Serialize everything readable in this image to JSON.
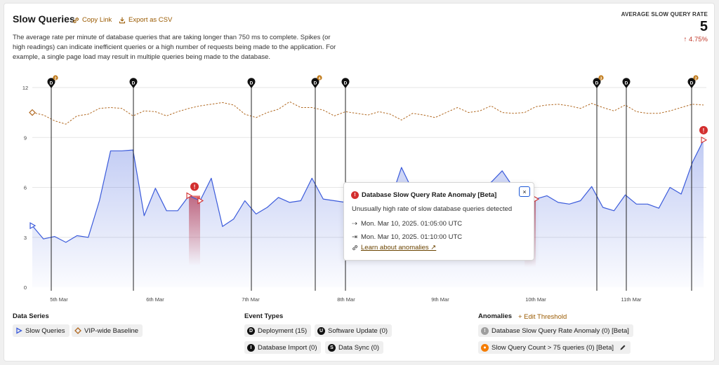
{
  "header": {
    "title": "Slow Queries",
    "copy_link": "Copy Link",
    "export_csv": "Export as CSV",
    "description": "The average rate per minute of database queries that are taking longer than 750 ms to complete. Spikes (or high readings) can indicate inefficient queries or a high number of requests being made to the application. For example, a single page load may result in multiple queries being made to the database."
  },
  "metric": {
    "label": "AVERAGE SLOW QUERY RATE",
    "value": "5",
    "delta": "↑ 4.75%"
  },
  "colors": {
    "series": "#3b5bdb",
    "baseline": "#b0671f",
    "anomaly": "#d32f2f",
    "accent": "#9a5a00"
  },
  "chart_data": {
    "type": "line",
    "y_ticks": [
      "0",
      "3",
      "6",
      "9",
      "12"
    ],
    "ylim": [
      0,
      12
    ],
    "x_ticks": [
      "5th Mar",
      "6th Mar",
      "7th Mar",
      "8th Mar",
      "9th Mar",
      "10th Mar",
      "11th Mar"
    ],
    "series": [
      {
        "name": "Slow Queries",
        "values": [
          3.7,
          2.9,
          3.05,
          2.7,
          3.1,
          3.0,
          5.2,
          8.2,
          8.2,
          8.25,
          4.3,
          5.95,
          4.6,
          4.6,
          5.5,
          5.2,
          6.55,
          3.65,
          4.1,
          5.2,
          4.4,
          4.8,
          5.4,
          5.1,
          5.2,
          6.55,
          5.3,
          5.2,
          5.1,
          5.0,
          5.5,
          5.0,
          5.2,
          7.2,
          5.8,
          5.3,
          5.25,
          5.2,
          5.1,
          5.2,
          6.2,
          6.3,
          7.0,
          6.0,
          5.4,
          5.3,
          5.5,
          5.1,
          5.0,
          5.2,
          6.05,
          4.8,
          4.6,
          5.55,
          5.0,
          5.0,
          4.75,
          6.0,
          5.6,
          7.5,
          8.85
        ]
      },
      {
        "name": "VIP-wide Baseline",
        "values": [
          10.5,
          10.35,
          10.0,
          9.8,
          10.3,
          10.4,
          10.75,
          10.8,
          10.75,
          10.3,
          10.6,
          10.55,
          10.3,
          10.55,
          10.75,
          10.9,
          11.0,
          11.1,
          10.95,
          10.4,
          10.2,
          10.5,
          10.7,
          11.15,
          10.8,
          10.8,
          10.65,
          10.3,
          10.55,
          10.45,
          10.35,
          10.55,
          10.4,
          10.05,
          10.45,
          10.35,
          10.2,
          10.5,
          10.8,
          10.5,
          10.6,
          10.9,
          10.5,
          10.45,
          10.5,
          10.85,
          10.95,
          11.0,
          10.9,
          10.75,
          11.05,
          10.8,
          10.6,
          10.95,
          10.55,
          10.45,
          10.45,
          10.6,
          10.8,
          11.0,
          10.95
        ]
      }
    ]
  },
  "events": [
    {
      "letter": "D",
      "count": "2"
    },
    {
      "letter": "D",
      "count": ""
    },
    {
      "letter": "D",
      "count": ""
    },
    {
      "letter": "D",
      "count": "4"
    },
    {
      "letter": "D",
      "count": ""
    },
    {
      "letter": "D",
      "count": "3"
    },
    {
      "letter": "D",
      "count": ""
    },
    {
      "letter": "D",
      "count": "2"
    }
  ],
  "tooltip": {
    "title": "Database Slow Query Rate Anomaly [Beta]",
    "description": "Unusually high rate of slow database queries detected",
    "start": "Mon. Mar 10, 2025. 01:05:00 UTC",
    "end": "Mon. Mar 10, 2025. 01:10:00 UTC",
    "link": "Learn about anomalies ↗",
    "close": "×"
  },
  "legend": {
    "data_series_title": "Data Series",
    "data_series": [
      "Slow Queries",
      "VIP-wide Baseline"
    ],
    "event_types_title": "Event Types",
    "event_types": [
      {
        "letter": "D",
        "label": "Deployment (15)"
      },
      {
        "letter": "U",
        "label": "Software Update (0)"
      },
      {
        "letter": "I",
        "label": "Database Import (0)"
      },
      {
        "letter": "S",
        "label": "Data Sync (0)"
      }
    ],
    "anomalies_title": "Anomalies",
    "edit_threshold": "+ Edit Threshold",
    "anomalies": [
      "Database Slow Query Rate Anomaly (0) [Beta]",
      "Slow Query Count > 75 queries (0) [Beta]"
    ]
  }
}
